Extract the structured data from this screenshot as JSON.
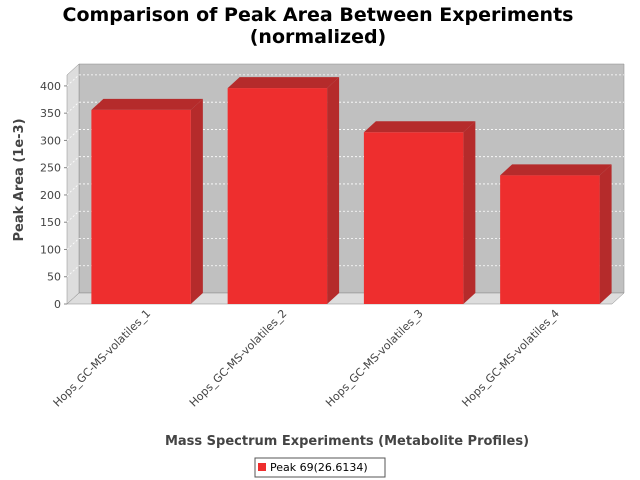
{
  "chart_data": {
    "type": "bar",
    "title_line1": "Comparison of Peak Area Between Experiments",
    "title_line2": "(normalized)",
    "xlabel": "Mass Spectrum Experiments (Metabolite Profiles)",
    "ylabel": "Peak Area (1e-3)",
    "categories": [
      "Hops_GC-MS-volatiles_1",
      "Hops_GC-MS-volatiles_2",
      "Hops_GC-MS-volatiles_3",
      "Hops_GC-MS-volatiles_4"
    ],
    "series": [
      {
        "name": "Peak 69(26.6134)",
        "values": [
          356,
          396,
          315,
          236
        ]
      }
    ],
    "ylim": [
      0,
      420
    ],
    "yticks": [
      0,
      50,
      100,
      150,
      200,
      250,
      300,
      350,
      400
    ],
    "grid": true,
    "legend_position": "bottom-center",
    "colors": {
      "bar_front": "#ee2e2e",
      "bar_top": "#b52b2b",
      "bar_side": "#b52b2b",
      "plot_background": "#c0c0c0",
      "plot_floor": "#dddddd",
      "plot_wall": "#dddddd",
      "gridline": "#ffffff"
    }
  }
}
